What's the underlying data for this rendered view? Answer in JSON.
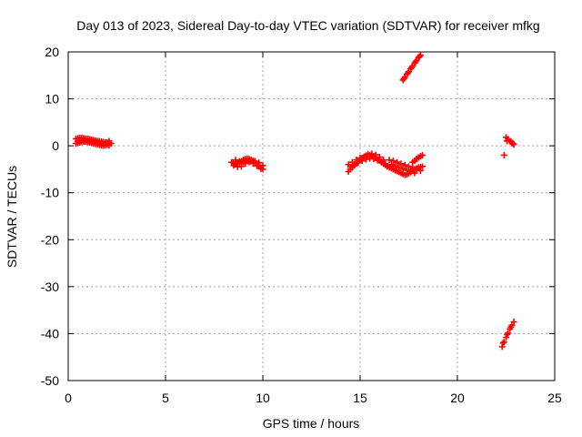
{
  "chart_data": {
    "type": "scatter",
    "title": "Day 013 of 2023, Sidereal Day-to-day VTEC variation (SDTVAR) for receiver mfkg",
    "xlabel": "GPS time / hours",
    "ylabel": "SDTVAR / TECUs",
    "xlim": [
      0,
      25
    ],
    "ylim": [
      -50,
      20
    ],
    "xticks": [
      0,
      5,
      10,
      15,
      20,
      25
    ],
    "yticks": [
      -50,
      -40,
      -30,
      -20,
      -10,
      0,
      10,
      20
    ],
    "grid": true,
    "legend": "none",
    "marker": "plus",
    "color": "#ff0000",
    "series": [
      {
        "x": [
          0.4,
          0.5,
          0.6,
          0.7,
          0.8,
          0.9,
          1.0,
          1.1,
          1.2,
          1.3,
          1.4,
          1.5,
          1.6,
          1.7,
          1.8,
          1.9,
          2.0,
          2.1,
          2.2,
          0.4,
          0.5,
          0.6,
          0.7,
          0.8,
          0.9,
          1.0,
          1.1,
          1.2,
          1.3,
          1.4,
          1.5,
          1.6,
          1.7,
          1.8,
          1.9,
          2.0,
          2.1,
          0.5,
          0.7,
          0.9,
          1.1,
          1.3,
          1.5,
          1.7,
          1.9,
          2.1,
          8.4,
          8.5,
          8.6,
          8.7,
          8.8,
          8.9,
          9.0,
          9.1,
          9.2,
          9.3,
          9.4,
          9.5,
          9.6,
          9.7,
          9.8,
          9.9,
          10.0,
          8.5,
          8.7,
          8.9,
          9.1,
          9.3,
          9.5,
          9.7,
          9.9,
          8.6,
          8.8,
          9.0,
          9.2,
          9.4,
          9.6,
          9.8,
          10.0,
          14.4,
          14.5,
          14.6,
          14.7,
          14.8,
          14.9,
          15.0,
          15.1,
          15.2,
          15.3,
          15.4,
          15.5,
          15.6,
          15.7,
          15.8,
          15.9,
          16.0,
          16.1,
          16.2,
          16.3,
          16.4,
          14.5,
          14.7,
          14.9,
          15.1,
          15.3,
          15.5,
          15.7,
          15.9,
          16.1,
          16.3,
          14.4,
          14.6,
          14.8,
          15.0,
          15.2,
          15.4,
          15.6,
          15.8,
          16.0,
          16.2,
          16.5,
          16.6,
          16.7,
          16.8,
          16.9,
          17.0,
          17.1,
          17.2,
          17.3,
          17.4,
          17.5,
          17.6,
          17.7,
          17.8,
          17.9,
          18.0,
          18.1,
          18.2,
          16.5,
          16.7,
          16.9,
          17.1,
          17.3,
          17.5,
          17.7,
          17.9,
          18.1,
          16.6,
          16.8,
          17.0,
          17.2,
          17.4,
          17.6,
          17.8,
          17.7,
          17.8,
          17.9,
          18.0,
          18.1,
          18.2,
          17.2,
          17.3,
          17.4,
          17.5,
          17.6,
          17.7,
          17.8,
          17.9,
          18.0,
          18.1,
          17.25,
          17.45,
          17.65,
          17.85,
          18.05,
          22.5,
          22.6,
          22.7,
          22.8,
          22.9,
          22.55,
          22.75,
          22.85,
          22.4,
          22.3,
          22.4,
          22.5,
          22.6,
          22.7,
          22.8,
          22.9,
          22.35,
          22.55,
          22.75
        ],
        "y": [
          1.5,
          1.6,
          1.7,
          1.7,
          1.6,
          1.5,
          1.5,
          1.4,
          1.3,
          1.2,
          1.1,
          1.0,
          1.0,
          0.9,
          0.8,
          0.7,
          0.7,
          0.6,
          0.5,
          0.5,
          0.6,
          0.7,
          0.8,
          0.9,
          0.9,
          0.8,
          0.7,
          0.6,
          0.5,
          0.4,
          0.3,
          0.2,
          0.1,
          0.0,
          0.1,
          0.2,
          0.1,
          1.0,
          1.2,
          1.1,
          0.9,
          0.8,
          0.6,
          0.4,
          0.3,
          1.0,
          -3.5,
          -3.7,
          -3.9,
          -3.8,
          -3.6,
          -3.3,
          -3.0,
          -2.8,
          -2.7,
          -2.8,
          -3.0,
          -3.2,
          -3.5,
          -3.8,
          -4.2,
          -4.6,
          -5.0,
          -4.2,
          -4.5,
          -4.4,
          -3.8,
          -3.5,
          -3.8,
          -4.3,
          -4.9,
          -3.0,
          -3.3,
          -3.5,
          -3.2,
          -3.1,
          -3.3,
          -3.6,
          -4.2,
          -5.5,
          -5.0,
          -4.6,
          -4.2,
          -3.8,
          -3.4,
          -3.0,
          -2.6,
          -2.3,
          -2.1,
          -2.0,
          -2.0,
          -2.1,
          -2.3,
          -2.6,
          -2.9,
          -3.2,
          -3.5,
          -3.8,
          -4.1,
          -4.4,
          -4.5,
          -4.0,
          -3.6,
          -3.2,
          -2.9,
          -2.7,
          -2.8,
          -3.1,
          -3.4,
          -3.8,
          -4.0,
          -3.5,
          -3.0,
          -2.6,
          -2.3,
          -1.8,
          -1.7,
          -1.9,
          -2.4,
          -3.0,
          -4.6,
          -4.8,
          -5.0,
          -5.2,
          -5.4,
          -5.6,
          -5.8,
          -6.0,
          -6.2,
          -6.1,
          -5.9,
          -5.6,
          -5.3,
          -5.0,
          -4.8,
          -4.6,
          -4.5,
          -4.4,
          -3.0,
          -3.2,
          -3.5,
          -3.8,
          -4.1,
          -4.4,
          -4.7,
          -5.0,
          -5.3,
          -4.0,
          -4.3,
          -4.6,
          -4.9,
          -5.2,
          -5.5,
          -5.8,
          -3.5,
          -3.2,
          -2.8,
          -2.5,
          -2.2,
          -2.0,
          14.0,
          14.6,
          15.2,
          15.8,
          16.4,
          17.0,
          17.6,
          18.2,
          18.8,
          19.3,
          14.3,
          15.5,
          16.7,
          17.9,
          19.0,
          1.8,
          1.4,
          1.0,
          0.6,
          0.3,
          1.0,
          0.9,
          0.5,
          -2.0,
          -42.8,
          -41.8,
          -40.8,
          -39.9,
          -39.0,
          -38.2,
          -37.5,
          -42.0,
          -40.2,
          -38.6
        ]
      }
    ]
  }
}
